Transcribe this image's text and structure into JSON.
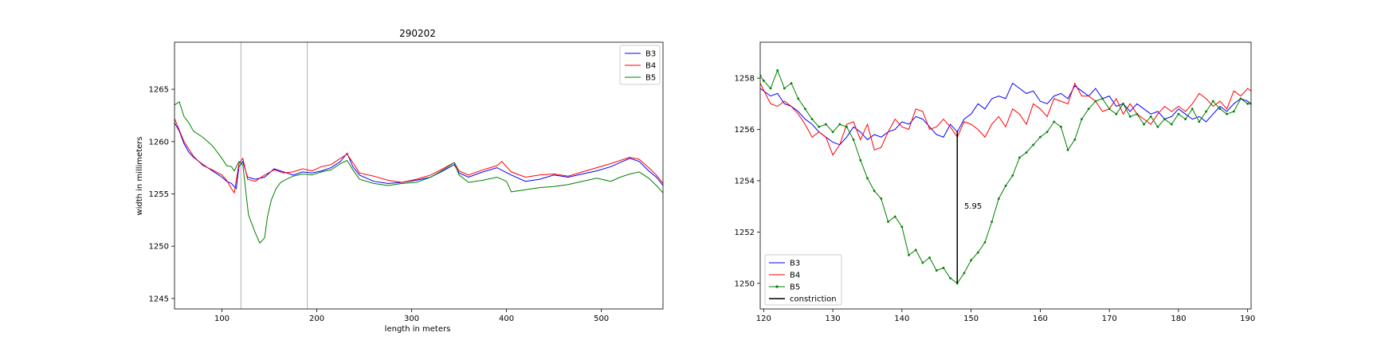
{
  "chart_data": [
    {
      "type": "line",
      "title": "290202",
      "xlabel": "length in meters",
      "ylabel": "width in millimeters",
      "xlim": [
        50,
        565
      ],
      "ylim": [
        1244,
        1269.5
      ],
      "xticks": [
        100,
        200,
        300,
        400,
        500
      ],
      "yticks": [
        1245,
        1250,
        1255,
        1260,
        1265
      ],
      "xtick_labels": [
        "100",
        "200",
        "300",
        "400",
        "500"
      ],
      "ytick_labels": [
        "1245",
        "1250",
        "1255",
        "1260",
        "1265"
      ],
      "vlines": [
        120,
        190
      ],
      "legend_position": "top-right",
      "series": [
        {
          "name": "B3",
          "color": "#0000ff",
          "x": [
            50,
            55,
            60,
            65,
            70,
            80,
            90,
            100,
            105,
            110,
            115,
            118,
            122,
            127,
            135,
            145,
            155,
            165,
            175,
            185,
            195,
            205,
            215,
            225,
            232,
            238,
            245,
            260,
            275,
            290,
            305,
            320,
            335,
            345,
            350,
            360,
            375,
            390,
            405,
            420,
            435,
            450,
            465,
            480,
            495,
            510,
            520,
            530,
            540,
            550,
            558,
            565
          ],
          "y": [
            1261.8,
            1261,
            1259.8,
            1259,
            1258.5,
            1257.8,
            1257.2,
            1256.6,
            1256.2,
            1256,
            1255.5,
            1257.6,
            1258.1,
            1256.6,
            1256.4,
            1256.6,
            1257.4,
            1257.1,
            1256.8,
            1257.1,
            1257,
            1257.2,
            1257.5,
            1258.1,
            1258.9,
            1257.6,
            1256.8,
            1256.2,
            1256,
            1256.1,
            1256.3,
            1256.6,
            1257.3,
            1257.8,
            1257,
            1256.6,
            1257.1,
            1257.5,
            1256.8,
            1256.2,
            1256.4,
            1256.8,
            1256.6,
            1256.9,
            1257.2,
            1257.6,
            1258,
            1258.4,
            1258.1,
            1257.2,
            1256.6,
            1255.8
          ]
        },
        {
          "name": "B4",
          "color": "#ff0000",
          "x": [
            50,
            55,
            60,
            65,
            70,
            80,
            90,
            100,
            105,
            110,
            113,
            118,
            122,
            127,
            135,
            145,
            155,
            165,
            175,
            185,
            195,
            205,
            215,
            225,
            232,
            238,
            245,
            260,
            275,
            290,
            305,
            320,
            335,
            345,
            350,
            360,
            375,
            390,
            395,
            405,
            420,
            435,
            450,
            465,
            480,
            495,
            510,
            520,
            530,
            540,
            550,
            558,
            565
          ],
          "y": [
            1262.2,
            1261.1,
            1260,
            1259.3,
            1258.6,
            1257.7,
            1257.3,
            1256.8,
            1256.3,
            1255.5,
            1255.1,
            1257.9,
            1258.4,
            1256.4,
            1256.2,
            1256.8,
            1257.3,
            1257,
            1257.1,
            1257.4,
            1257.2,
            1257.6,
            1257.8,
            1258.4,
            1258.8,
            1258,
            1257,
            1256.7,
            1256.3,
            1256.1,
            1256.4,
            1256.8,
            1257.5,
            1258,
            1257.2,
            1256.8,
            1257.3,
            1257.7,
            1258.1,
            1257.1,
            1256.6,
            1256.8,
            1256.9,
            1256.7,
            1257.1,
            1257.5,
            1257.9,
            1258.2,
            1258.5,
            1258.3,
            1257.5,
            1256.8,
            1256
          ]
        },
        {
          "name": "B5",
          "color": "#008000",
          "x": [
            50,
            55,
            60,
            65,
            70,
            80,
            90,
            100,
            105,
            110,
            113,
            118,
            122,
            128,
            135,
            140,
            145,
            148,
            152,
            157,
            162,
            168,
            175,
            185,
            195,
            205,
            215,
            225,
            232,
            238,
            245,
            260,
            275,
            290,
            305,
            320,
            335,
            345,
            350,
            360,
            375,
            390,
            400,
            405,
            420,
            435,
            450,
            465,
            480,
            495,
            510,
            520,
            530,
            540,
            550,
            558,
            565
          ],
          "y": [
            1263.5,
            1263.8,
            1262.4,
            1261.8,
            1261,
            1260.4,
            1259.6,
            1258.4,
            1257.7,
            1257.6,
            1257.2,
            1258.1,
            1257.8,
            1253,
            1251.3,
            1250.3,
            1250.8,
            1252.8,
            1254.4,
            1255.5,
            1256.1,
            1256.4,
            1256.7,
            1256.9,
            1256.8,
            1257.1,
            1257.3,
            1257.9,
            1258.2,
            1257.3,
            1256.4,
            1256,
            1255.8,
            1256,
            1256.1,
            1256.6,
            1257.4,
            1258,
            1256.8,
            1256.1,
            1256.3,
            1256.6,
            1256.2,
            1255.2,
            1255.4,
            1255.6,
            1255.7,
            1255.9,
            1256.2,
            1256.5,
            1256.2,
            1256.6,
            1256.9,
            1257.1,
            1256.5,
            1255.8,
            1255.1
          ]
        }
      ]
    },
    {
      "type": "line",
      "xlim": [
        119.5,
        190.5
      ],
      "ylim": [
        1249,
        1259.4
      ],
      "xticks": [
        120,
        130,
        140,
        150,
        160,
        170,
        180,
        190
      ],
      "yticks": [
        1250,
        1252,
        1254,
        1256,
        1258
      ],
      "xtick_labels": [
        "120",
        "130",
        "140",
        "150",
        "160",
        "170",
        "180",
        "190"
      ],
      "ytick_labels": [
        "1250",
        "1252",
        "1254",
        "1256",
        "1258"
      ],
      "legend_position": "lower-left",
      "annotation": {
        "text": "5.95",
        "x": 149,
        "y": 1253
      },
      "constriction": {
        "x": 148,
        "y0": 1250,
        "y1": 1255.95
      },
      "series": [
        {
          "name": "B3",
          "color": "#0000ff",
          "x": [
            119.5,
            121,
            122,
            123,
            124,
            125,
            126,
            127,
            128,
            129,
            130,
            131,
            132,
            133,
            134,
            135,
            136,
            137,
            138,
            139,
            140,
            141,
            142,
            143,
            144,
            145,
            146,
            147,
            148,
            149,
            150,
            151,
            152,
            153,
            154,
            155,
            156,
            157,
            158,
            159,
            160,
            161,
            162,
            163,
            164,
            165,
            166,
            167,
            168,
            169,
            170,
            171,
            172,
            173,
            174,
            175,
            176,
            177,
            178,
            179,
            180,
            181,
            182,
            183,
            184,
            185,
            186,
            187,
            188,
            189,
            190,
            190.5
          ],
          "y": [
            1257.6,
            1257.3,
            1257.4,
            1257,
            1256.9,
            1256.7,
            1256.4,
            1256.2,
            1255.9,
            1255.7,
            1255.5,
            1255.4,
            1255.7,
            1256.1,
            1255.9,
            1255.6,
            1255.8,
            1255.7,
            1255.9,
            1256,
            1256.3,
            1256.2,
            1256.5,
            1256.4,
            1256.1,
            1255.8,
            1255.7,
            1256.2,
            1255.9,
            1256.4,
            1256.6,
            1257,
            1256.8,
            1257.2,
            1257.3,
            1257.2,
            1257.8,
            1257.6,
            1257.4,
            1257.5,
            1257.1,
            1257,
            1257.3,
            1257.4,
            1257.2,
            1257.7,
            1257.5,
            1257.3,
            1257.6,
            1257.2,
            1257.3,
            1256.9,
            1257,
            1256.7,
            1257,
            1256.8,
            1256.6,
            1256.7,
            1256.4,
            1256.5,
            1256.8,
            1256.6,
            1256.4,
            1256.5,
            1256.3,
            1256.6,
            1256.9,
            1256.7,
            1257,
            1257.2,
            1257.1,
            1257
          ]
        },
        {
          "name": "B4",
          "color": "#ff0000",
          "x": [
            119.5,
            121,
            122,
            123,
            124,
            125,
            126,
            127,
            128,
            129,
            130,
            131,
            132,
            133,
            134,
            135,
            136,
            137,
            138,
            139,
            140,
            141,
            142,
            143,
            144,
            145,
            146,
            147,
            148,
            149,
            150,
            151,
            152,
            153,
            154,
            155,
            156,
            157,
            158,
            159,
            160,
            161,
            162,
            163,
            164,
            165,
            166,
            167,
            168,
            169,
            170,
            171,
            172,
            173,
            174,
            175,
            176,
            177,
            178,
            179,
            180,
            181,
            182,
            183,
            184,
            185,
            186,
            187,
            188,
            189,
            190,
            190.5
          ],
          "y": [
            1257.8,
            1257,
            1256.9,
            1257.1,
            1256.9,
            1256.6,
            1256.2,
            1255.7,
            1255.9,
            1255.7,
            1255,
            1255.4,
            1256.2,
            1256.3,
            1255.6,
            1256.2,
            1255.2,
            1255.3,
            1255.9,
            1256.4,
            1256.1,
            1256,
            1256.8,
            1256.7,
            1256,
            1256.1,
            1256.4,
            1256.1,
            1255.7,
            1256.3,
            1256.2,
            1256,
            1255.7,
            1256.2,
            1256.5,
            1256.1,
            1256.8,
            1256.6,
            1256.2,
            1257,
            1256.8,
            1256.5,
            1257.2,
            1257.1,
            1257,
            1257.8,
            1257.3,
            1257.3,
            1257.1,
            1256.7,
            1256.8,
            1257.2,
            1256.6,
            1257,
            1256.6,
            1256.4,
            1256.2,
            1256.6,
            1256.9,
            1256.7,
            1256.9,
            1256.7,
            1257,
            1257.4,
            1257.2,
            1256.9,
            1257.1,
            1256.8,
            1257.5,
            1257.3,
            1257.6,
            1257.5
          ]
        },
        {
          "name": "B5",
          "color": "#008000",
          "x": [
            119.5,
            120,
            121,
            122,
            123,
            124,
            125,
            126,
            127,
            128,
            129,
            130,
            131,
            132,
            133,
            134,
            135,
            136,
            137,
            138,
            139,
            140,
            141,
            142,
            143,
            144,
            145,
            146,
            147,
            148,
            149,
            150,
            151,
            152,
            153,
            154,
            155,
            156,
            157,
            158,
            159,
            160,
            161,
            162,
            163,
            164,
            165,
            166,
            167,
            168,
            169,
            170,
            171,
            172,
            173,
            174,
            175,
            176,
            177,
            178,
            179,
            180,
            181,
            182,
            183,
            184,
            185,
            186,
            187,
            188,
            189,
            190,
            190.5
          ],
          "y": [
            1258.1,
            1257.9,
            1257.6,
            1258.3,
            1257.6,
            1257.8,
            1257.2,
            1256.8,
            1256.4,
            1256.1,
            1256.2,
            1255.9,
            1256.2,
            1256.1,
            1255.6,
            1254.8,
            1254.1,
            1253.6,
            1253.3,
            1252.4,
            1252.6,
            1252.2,
            1251.1,
            1251.3,
            1250.8,
            1251,
            1250.5,
            1250.6,
            1250.2,
            1250,
            1250.4,
            1250.9,
            1251.2,
            1251.6,
            1252.4,
            1253.3,
            1253.8,
            1254.2,
            1254.9,
            1255.1,
            1255.4,
            1255.7,
            1255.9,
            1256.3,
            1256.1,
            1255.2,
            1255.6,
            1256.4,
            1256.8,
            1257.1,
            1257.2,
            1256.8,
            1256.6,
            1257,
            1256.5,
            1256.6,
            1256.2,
            1256.5,
            1256.1,
            1256.4,
            1256.2,
            1256.6,
            1256.4,
            1256.8,
            1256.3,
            1256.7,
            1257.1,
            1256.8,
            1256.6,
            1256.7,
            1257.2,
            1257,
            1257
          ]
        }
      ]
    }
  ],
  "legend_right": {
    "constriction_label": "constriction"
  }
}
